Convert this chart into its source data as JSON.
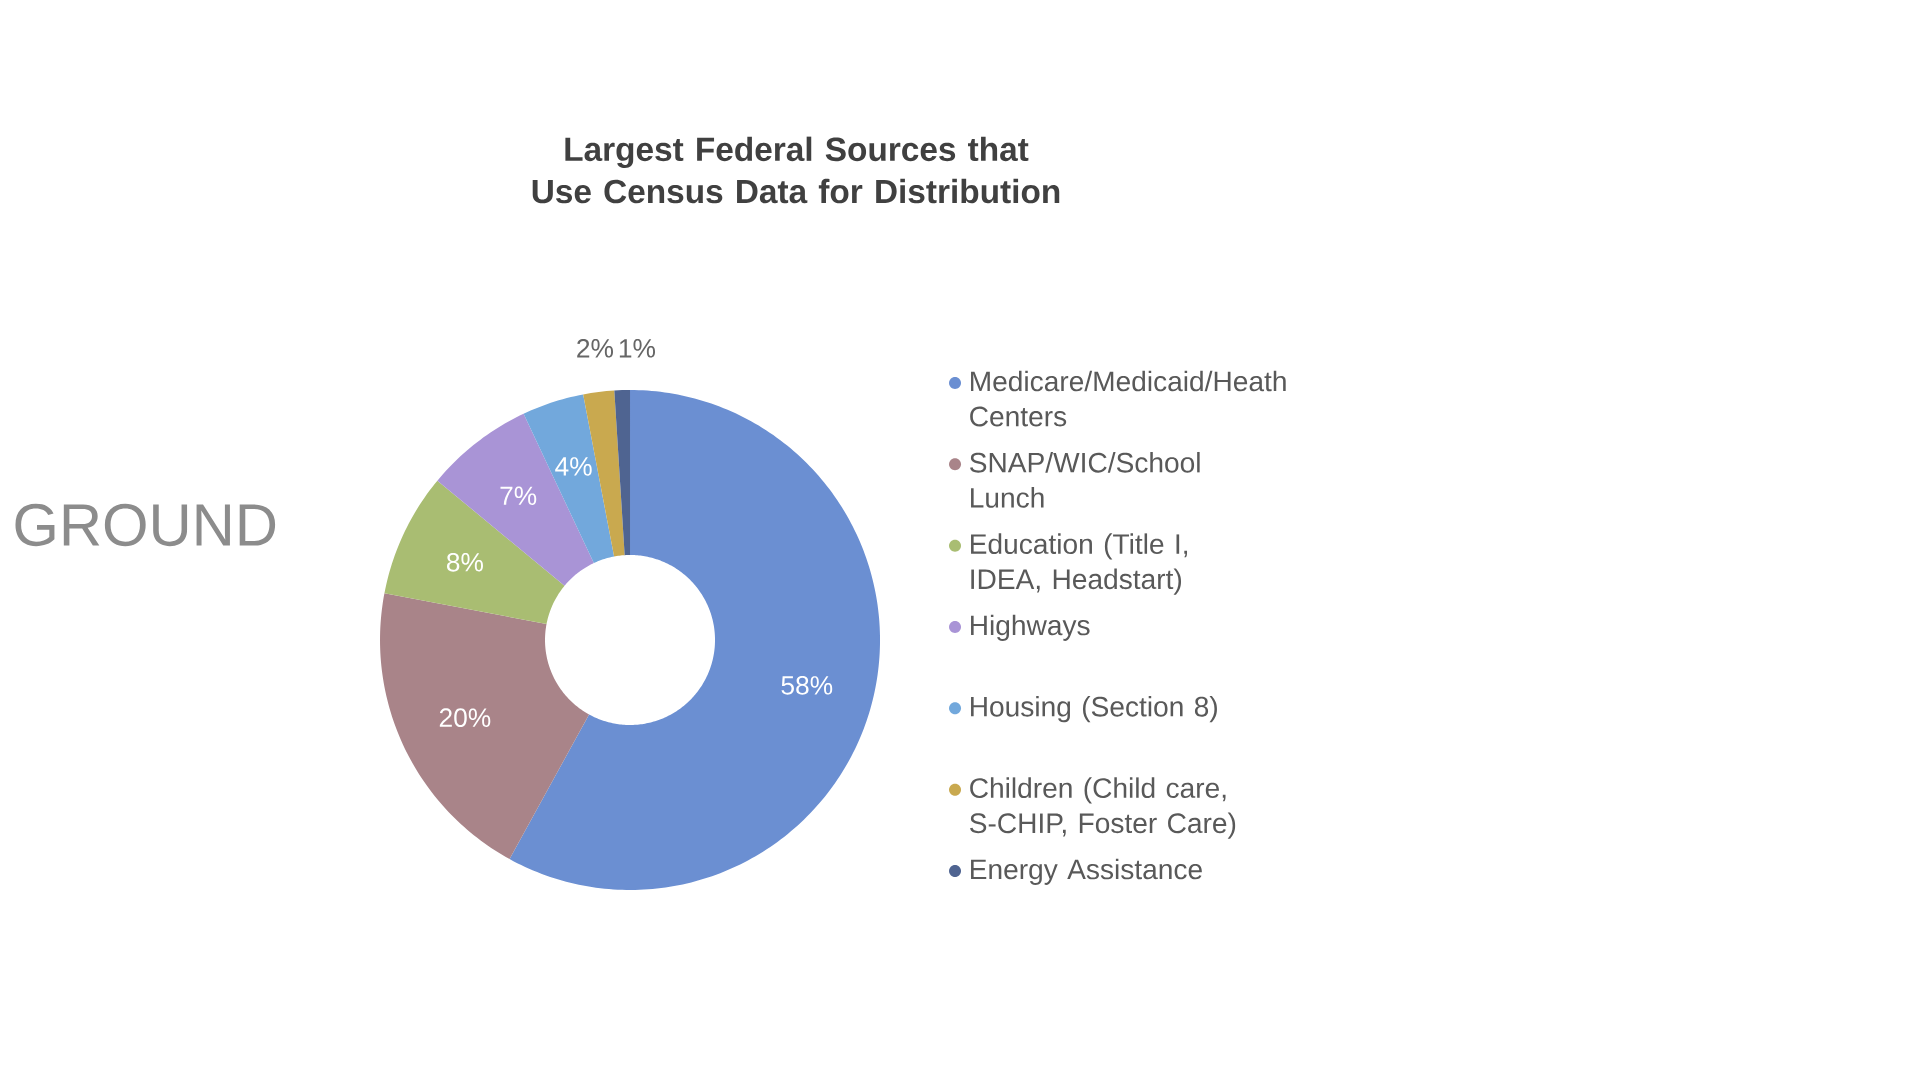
{
  "chart_data": {
    "type": "donut",
    "title": "Largest Federal Sources that Use Census Data for Distribution",
    "categories": [
      "Medicare/Medicaid/Heath Centers",
      "SNAP/WIC/School Lunch",
      "Education (Title I, IDEA, Headstart)",
      "Highways",
      "Housing (Section 8)",
      "Children (Child care, S-CHIP, Foster Care)",
      "Energy Assistance"
    ],
    "values": [
      58,
      20,
      8,
      7,
      4,
      2,
      1
    ],
    "colors": [
      "#6b8fd2",
      "#a98489",
      "#a9bd72",
      "#a994d6",
      "#72a8dc",
      "#c9a94f",
      "#4f6491"
    ],
    "value_labels": [
      "58%",
      "20%",
      "8%",
      "7%",
      "4%",
      "2%",
      "1%"
    ],
    "legend": "right",
    "annotations": [
      "GROUND"
    ]
  }
}
